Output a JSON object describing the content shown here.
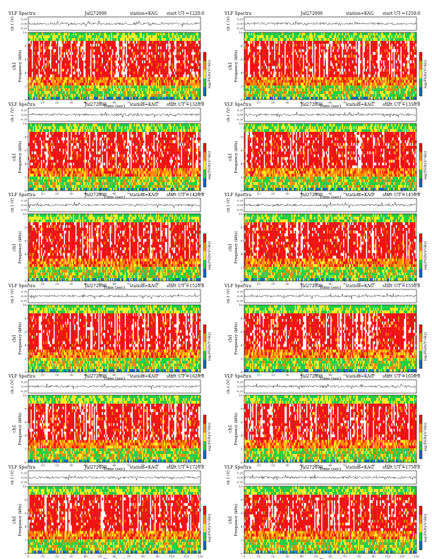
{
  "chart_data": [
    {
      "type": "heatmap",
      "title": "VLF Spectra",
      "date": "Jul272008",
      "station": "station=KAG",
      "start": "start UT =1220:0",
      "trace_ylabel": "ch.1 (V)",
      "trace_yticks": [
        "0.20",
        "0.00",
        "-0.20"
      ],
      "ylabel": "Frequency (kHz)",
      "ylabel_prefix": "ch1",
      "yticks": [
        0,
        2,
        4,
        6,
        8,
        10
      ],
      "xlabel": "Time (sec)",
      "xlim": [
        0,
        120
      ],
      "xticks": [
        0,
        10,
        20,
        30,
        40,
        50,
        60,
        70,
        80,
        90,
        100,
        110,
        120
      ],
      "colorbar_label": "log(PSD)(V²/Hz)"
    },
    {
      "type": "heatmap",
      "title": "VLF Spectra",
      "date": "Jul272008",
      "station": "station=KAG",
      "start": "start UT =1250:0",
      "trace_ylabel": "ch.1 (V)",
      "trace_yticks": [
        "0.20",
        "0.00",
        "-0.20"
      ],
      "ylabel": "Frequency (kHz)",
      "ylabel_prefix": "ch1",
      "yticks": [
        0,
        2,
        4,
        6,
        8,
        10
      ],
      "xlabel": "Time (sec)",
      "xlim": [
        0,
        120
      ],
      "xticks": [
        0,
        10,
        20,
        30,
        40,
        50,
        60,
        70,
        80,
        90,
        100,
        110,
        120
      ],
      "colorbar_label": "log(PSD)(V²/Hz)"
    },
    {
      "type": "heatmap",
      "title": "VLF Spectra",
      "date": "Jul272008",
      "station": "station=KAG",
      "start": "start UT =1320:0",
      "trace_ylabel": "ch.1 (V)",
      "trace_yticks": [
        "0.20",
        "0.00",
        "-0.20"
      ],
      "ylabel": "Frequency (kHz)",
      "ylabel_prefix": "ch1",
      "yticks": [
        0,
        2,
        4,
        6,
        8,
        10
      ],
      "xlabel": "Time (sec)",
      "xlim": [
        0,
        120
      ],
      "xticks": [
        0,
        10,
        20,
        30,
        40,
        50,
        60,
        70,
        80,
        90,
        100,
        110,
        120
      ],
      "colorbar_label": "log(PSD)(V²/Hz)"
    },
    {
      "type": "heatmap",
      "title": "VLF Spectra",
      "date": "Jul272008",
      "station": "station=KAG",
      "start": "start UT =1350:0",
      "trace_ylabel": "ch.1 (V)",
      "trace_yticks": [
        "0.20",
        "0.00",
        "-0.20"
      ],
      "ylabel": "Frequency (kHz)",
      "ylabel_prefix": "ch1",
      "yticks": [
        0,
        2,
        4,
        6,
        8,
        10
      ],
      "xlabel": "Time (sec)",
      "xlim": [
        0,
        120
      ],
      "xticks": [
        0,
        10,
        20,
        30,
        40,
        50,
        60,
        70,
        80,
        90,
        100,
        110,
        120
      ],
      "colorbar_label": "log(PSD)(V²/Hz)"
    },
    {
      "type": "heatmap",
      "title": "VLF Spectra",
      "date": "Jul272008",
      "station": "station=KAG",
      "start": "start UT =1420:0",
      "trace_ylabel": "ch.1 (V)",
      "trace_yticks": [
        "0.20",
        "0.00",
        "-0.20"
      ],
      "ylabel": "Frequency (kHz)",
      "ylabel_prefix": "ch1",
      "yticks": [
        0,
        2,
        4,
        6,
        8,
        10
      ],
      "xlabel": "Time (sec)",
      "xlim": [
        0,
        120
      ],
      "xticks": [
        0,
        10,
        20,
        30,
        40,
        50,
        60,
        70,
        80,
        90,
        100,
        110,
        120
      ],
      "colorbar_label": "log(PSD)(V²/Hz)"
    },
    {
      "type": "heatmap",
      "title": "VLF Spectra",
      "date": "Jul272008",
      "station": "station=KAG",
      "start": "start UT =1450:0",
      "trace_ylabel": "ch.1 (V)",
      "trace_yticks": [
        "0.20",
        "0.00",
        "-0.20"
      ],
      "ylabel": "Frequency (kHz)",
      "ylabel_prefix": "ch1",
      "yticks": [
        0,
        2,
        4,
        6,
        8,
        10
      ],
      "xlabel": "Time (sec)",
      "xlim": [
        0,
        120
      ],
      "xticks": [
        0,
        10,
        20,
        30,
        40,
        50,
        60,
        70,
        80,
        90,
        100,
        110,
        120
      ],
      "colorbar_label": "log(PSD)(V²/Hz)"
    },
    {
      "type": "heatmap",
      "title": "VLF Spectra",
      "date": "Jul272008",
      "station": "station=KAG",
      "start": "start UT =1520:0",
      "trace_ylabel": "ch.1 (V)",
      "trace_yticks": [
        "0.20",
        "0.00",
        "-0.20"
      ],
      "ylabel": "Frequency (kHz)",
      "ylabel_prefix": "ch1",
      "yticks": [
        0,
        2,
        4,
        6,
        8,
        10
      ],
      "xlabel": "Time (sec)",
      "xlim": [
        0,
        120
      ],
      "xticks": [
        0,
        10,
        20,
        30,
        40,
        50,
        60,
        70,
        80,
        90,
        100,
        110,
        120
      ],
      "colorbar_label": "log(PSD)(V²/Hz)"
    },
    {
      "type": "heatmap",
      "title": "VLF Spectra",
      "date": "Jul272008",
      "station": "station=KAG",
      "start": "start UT =1550:0",
      "trace_ylabel": "ch.1 (V)",
      "trace_yticks": [
        "0.20",
        "0.00",
        "-0.20"
      ],
      "ylabel": "Frequency (kHz)",
      "ylabel_prefix": "ch1",
      "yticks": [
        0,
        2,
        4,
        6,
        8,
        10
      ],
      "xlabel": "Time (sec)",
      "xlim": [
        0,
        120
      ],
      "xticks": [
        0,
        10,
        20,
        30,
        40,
        50,
        60,
        70,
        80,
        90,
        100,
        110,
        120
      ],
      "colorbar_label": "log(PSD)(V²/Hz)"
    },
    {
      "type": "heatmap",
      "title": "VLF Spectra",
      "date": "Jul272008",
      "station": "station=KAG",
      "start": "start UT =1620:0",
      "trace_ylabel": "ch.1 (V)",
      "trace_yticks": [
        "0.20",
        "0.00",
        "-0.20"
      ],
      "ylabel": "Frequency (kHz)",
      "ylabel_prefix": "ch1",
      "yticks": [
        0,
        2,
        4,
        6,
        8,
        10
      ],
      "xlabel": "Time (sec)",
      "xlim": [
        0,
        120
      ],
      "xticks": [
        0,
        10,
        20,
        30,
        40,
        50,
        60,
        70,
        80,
        90,
        100,
        110,
        120
      ],
      "colorbar_label": "log(PSD)(V²/Hz)"
    },
    {
      "type": "heatmap",
      "title": "VLF Spectra",
      "date": "Jul272008",
      "station": "station=KAG",
      "start": "start UT =1650:0",
      "trace_ylabel": "ch.1 (V)",
      "trace_yticks": [
        "0.20",
        "0.00",
        "-0.20"
      ],
      "ylabel": "Frequency (kHz)",
      "ylabel_prefix": "ch1",
      "yticks": [
        0,
        2,
        4,
        6,
        8,
        10
      ],
      "xlabel": "Time (sec)",
      "xlim": [
        0,
        120
      ],
      "xticks": [
        0,
        10,
        20,
        30,
        40,
        50,
        60,
        70,
        80,
        90,
        100,
        110,
        120
      ],
      "colorbar_label": "log(PSD)(V²/Hz)"
    },
    {
      "type": "heatmap",
      "title": "VLF Spectra",
      "date": "Jul272008",
      "station": "station=KAG",
      "start": "start UT =1720:0",
      "trace_ylabel": "ch.1 (V)",
      "trace_yticks": [
        "0.20",
        "0.00",
        "-0.20"
      ],
      "ylabel": "Frequency (kHz)",
      "ylabel_prefix": "ch1",
      "yticks": [
        0,
        2,
        4,
        6,
        8,
        10
      ],
      "xlabel": "Time (sec)",
      "xlim": [
        0,
        120
      ],
      "xticks": [
        0,
        10,
        20,
        30,
        40,
        50,
        60,
        70,
        80,
        90,
        100,
        110,
        120
      ],
      "colorbar_label": "log(PSD)(V²/Hz)"
    },
    {
      "type": "heatmap",
      "title": "VLF Spectra",
      "date": "Jul272008",
      "station": "station=KAG",
      "start": "start UT =1750:0",
      "trace_ylabel": "ch.1 (V)",
      "trace_yticks": [
        "0.20",
        "0.00",
        "-0.20"
      ],
      "ylabel": "Frequency (kHz)",
      "ylabel_prefix": "ch1",
      "yticks": [
        0,
        2,
        4,
        6,
        8,
        10
      ],
      "xlabel": "Time (sec)",
      "xlim": [
        0,
        120
      ],
      "xticks": [
        0,
        10,
        20,
        30,
        40,
        50,
        60,
        70,
        80,
        90,
        100,
        110,
        120
      ],
      "colorbar_label": "log(PSD)(V²/Hz)"
    }
  ],
  "colors": {
    "spec_low": "#1565c0",
    "spec_green": "#22cc44",
    "spec_yellow": "#ffee22",
    "spec_orange": "#ff8800",
    "spec_red": "#ee1111",
    "spec_bg": "#ffffff"
  }
}
